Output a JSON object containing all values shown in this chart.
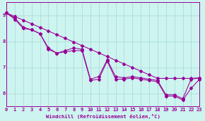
{
  "xlabel": "Windchill (Refroidissement éolien,°C)",
  "background_color": "#cdf4ef",
  "line_color": "#990099",
  "grid_color": "#aadddd",
  "xlim": [
    0,
    23
  ],
  "ylim": [
    5.5,
    9.5
  ],
  "yticks": [
    6,
    7,
    8,
    9
  ],
  "xticks": [
    0,
    1,
    2,
    3,
    4,
    5,
    6,
    7,
    8,
    9,
    10,
    11,
    12,
    13,
    14,
    15,
    16,
    17,
    18,
    19,
    20,
    21,
    22,
    23
  ],
  "hours": [
    0,
    1,
    2,
    3,
    4,
    5,
    6,
    7,
    8,
    9,
    10,
    11,
    12,
    13,
    14,
    15,
    16,
    17,
    18,
    19,
    20,
    21,
    22,
    23
  ],
  "values_trend": [
    9.1,
    8.96,
    8.82,
    8.68,
    8.54,
    8.4,
    8.26,
    8.12,
    7.98,
    7.84,
    7.7,
    7.56,
    7.42,
    7.28,
    7.14,
    7.0,
    6.86,
    6.72,
    6.58,
    6.58,
    6.58,
    6.58,
    6.58,
    6.6
  ],
  "values_main": [
    9.1,
    8.9,
    8.55,
    8.45,
    8.3,
    7.75,
    7.55,
    7.65,
    7.75,
    7.7,
    6.55,
    6.65,
    7.3,
    6.65,
    6.6,
    6.65,
    6.6,
    6.55,
    6.5,
    5.95,
    5.95,
    5.8,
    6.55,
    6.6
  ],
  "values_close": [
    9.1,
    8.85,
    8.5,
    8.45,
    8.3,
    7.7,
    7.55,
    7.6,
    7.65,
    7.65,
    6.5,
    6.55,
    7.25,
    6.55,
    6.55,
    6.6,
    6.55,
    6.5,
    6.45,
    5.9,
    5.9,
    5.75,
    6.2,
    6.55
  ]
}
